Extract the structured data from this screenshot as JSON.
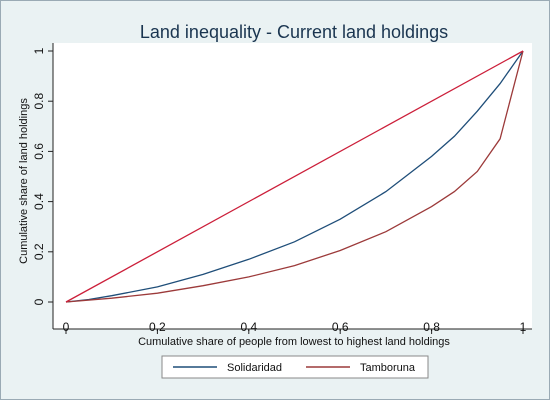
{
  "chart_data": {
    "type": "line",
    "title": "Land inequality - Current land holdings",
    "xlabel": "Cumulative share of people from lowest to highest land holdings",
    "ylabel": "Cumulative share of land holdings",
    "xlim": [
      0,
      1
    ],
    "ylim": [
      0,
      1
    ],
    "xticks": [
      "0",
      "0.2",
      "0.4",
      "0.6",
      "0.8",
      "1"
    ],
    "yticks": [
      "0",
      "0.2",
      "0.4",
      "0.6",
      "0.8",
      "1"
    ],
    "grid": false,
    "legend_position": "bottom",
    "series": [
      {
        "name": "Solidaridad",
        "color": "#1f4e79",
        "points": [
          [
            0,
            0
          ],
          [
            0.05,
            0.01
          ],
          [
            0.1,
            0.025
          ],
          [
            0.2,
            0.06
          ],
          [
            0.3,
            0.11
          ],
          [
            0.4,
            0.17
          ],
          [
            0.5,
            0.24
          ],
          [
            0.6,
            0.33
          ],
          [
            0.7,
            0.44
          ],
          [
            0.75,
            0.51
          ],
          [
            0.8,
            0.58
          ],
          [
            0.85,
            0.66
          ],
          [
            0.9,
            0.76
          ],
          [
            0.95,
            0.87
          ],
          [
            1,
            1
          ]
        ]
      },
      {
        "name": "Tamboruna",
        "color": "#9c3a3a",
        "points": [
          [
            0,
            0
          ],
          [
            0.1,
            0.015
          ],
          [
            0.2,
            0.035
          ],
          [
            0.3,
            0.065
          ],
          [
            0.4,
            0.1
          ],
          [
            0.5,
            0.145
          ],
          [
            0.6,
            0.205
          ],
          [
            0.7,
            0.28
          ],
          [
            0.8,
            0.38
          ],
          [
            0.85,
            0.44
          ],
          [
            0.9,
            0.52
          ],
          [
            0.95,
            0.65
          ],
          [
            1,
            1
          ]
        ]
      },
      {
        "name": "",
        "color": "#cc1f3a",
        "points": [
          [
            0,
            0
          ],
          [
            1,
            1
          ]
        ]
      }
    ]
  }
}
